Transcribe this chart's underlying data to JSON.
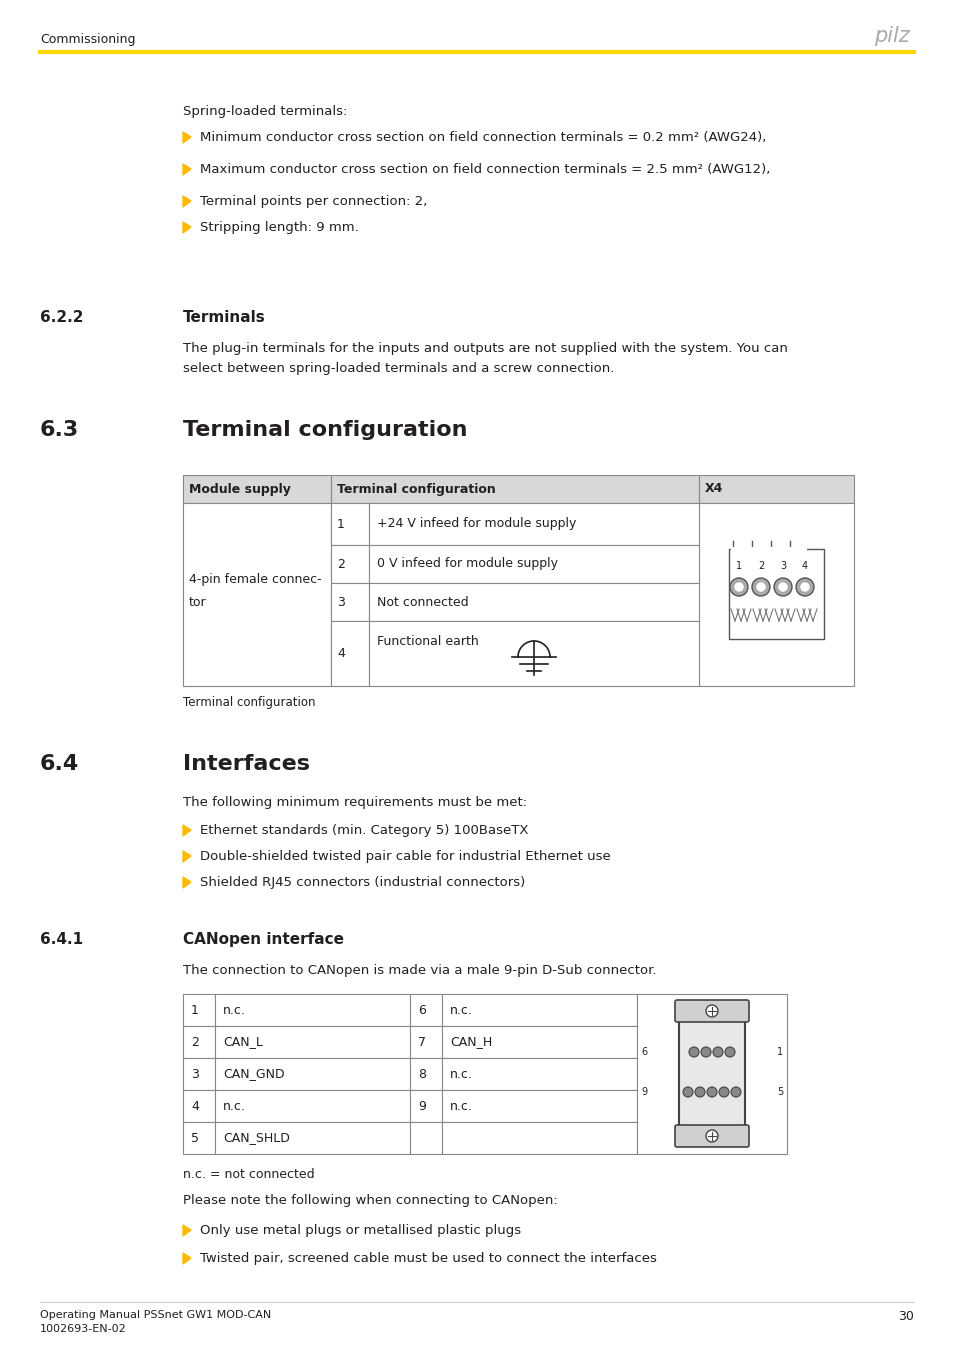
{
  "header_text": "Commissioning",
  "pilz_logo": "pilz",
  "yellow_line_color": "#FFD700",
  "footer_line1": "Operating Manual PSSnet GW1 MOD-CAN",
  "footer_line2": "1002693-EN-02",
  "footer_page": "30",
  "section_intro_text": "Spring-loaded terminals:",
  "bullets_intro": [
    "Minimum conductor cross section on field connection terminals = 0.2 mm² (AWG24),",
    "Maximum conductor cross section on field connection terminals = 2.5 mm² (AWG12),",
    "Terminal points per connection: 2,",
    "Stripping length: 9 mm."
  ],
  "section_622_num": "6.2.2",
  "section_622_title": "Terminals",
  "section_622_body_1": "The plug-in terminals for the inputs and outputs are not supplied with the system. You can",
  "section_622_body_2": "select between spring-loaded terminals and a screw connection.",
  "section_63_num": "6.3",
  "section_63_title": "Terminal configuration",
  "table1_col0_header": "Module supply",
  "table1_col1_header": "Terminal configuration",
  "table1_col2_header": "X4",
  "table1_connector": [
    "4-pin female connec-",
    "tor"
  ],
  "table1_rows": [
    [
      "1",
      "+24 V infeed for module supply"
    ],
    [
      "2",
      "0 V infeed for module supply"
    ],
    [
      "3",
      "Not connected"
    ],
    [
      "4",
      "Functional earth"
    ]
  ],
  "table1_caption": "Terminal configuration",
  "section_64_num": "6.4",
  "section_64_title": "Interfaces",
  "section_64_body": "The following minimum requirements must be met:",
  "bullets_64": [
    "Ethernet standards (min. Category 5) 100BaseTX",
    "Double-shielded twisted pair cable for industrial Ethernet use",
    "Shielded RJ45 connectors (industrial connectors)"
  ],
  "section_641_num": "6.4.1",
  "section_641_title": "CANopen interface",
  "section_641_body": "The connection to CANopen is made via a male 9-pin D-Sub connector.",
  "table2_left": [
    [
      "1",
      "n.c."
    ],
    [
      "2",
      "CAN_L"
    ],
    [
      "3",
      "CAN_GND"
    ],
    [
      "4",
      "n.c."
    ],
    [
      "5",
      "CAN_SHLD"
    ]
  ],
  "table2_right": [
    [
      "6",
      "n.c."
    ],
    [
      "7",
      "CAN_H"
    ],
    [
      "8",
      "n.c."
    ],
    [
      "9",
      "n.c."
    ],
    [
      "",
      ""
    ]
  ],
  "table2_caption": "n.c. = not connected",
  "section_641_note": "Please note the following when connecting to CANopen:",
  "bullets_641": [
    "Only use metal plugs or metallised plastic plugs",
    "Twisted pair, screened cable must be used to connect the interfaces"
  ],
  "text_color": "#231F20",
  "table_border": "#888888",
  "table_header_bg": "#D8D8D8",
  "bullet_color": "#FFB900",
  "header_color": "#AAAAAA",
  "line_gray": "#CCCCCC"
}
